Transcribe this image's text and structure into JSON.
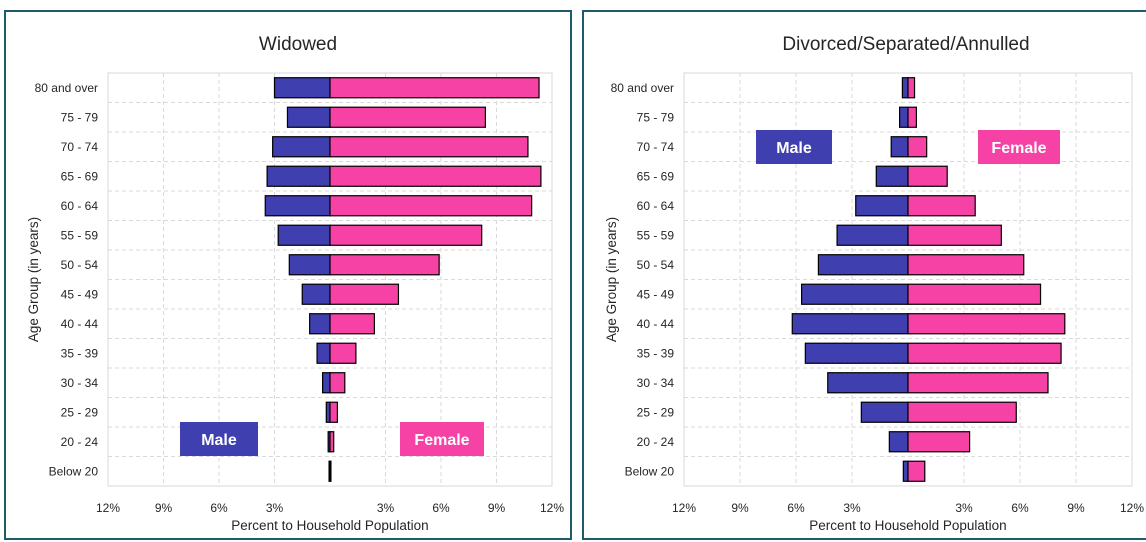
{
  "colors": {
    "male": "#3f3fb0",
    "female": "#f542a4",
    "border": "#1f5c6b",
    "grid": "#d9d9d9"
  },
  "chart_data": [
    {
      "type": "bar",
      "orientation": "horizontal-population-pyramid",
      "title": "Widowed",
      "xlabel": "Percent to Household Population",
      "ylabel": "Age Group (in years)",
      "xlim": [
        -12,
        12
      ],
      "xticks": [
        "12%",
        "9%",
        "6%",
        "3%",
        "3%",
        "6%",
        "9%",
        "12%"
      ],
      "grid": true,
      "categories": [
        "80 and over",
        "75 - 79",
        "70 - 74",
        "65 - 69",
        "60 - 64",
        "55 - 59",
        "50 - 54",
        "45 - 49",
        "40 - 44",
        "35 - 39",
        "30 - 34",
        "25 - 29",
        "20 - 24",
        "Below 20"
      ],
      "series": [
        {
          "name": "Male",
          "values": [
            3.0,
            2.3,
            3.1,
            3.4,
            3.5,
            2.8,
            2.2,
            1.5,
            1.1,
            0.7,
            0.4,
            0.2,
            0.1,
            0.05
          ]
        },
        {
          "name": "Female",
          "values": [
            11.3,
            8.4,
            10.7,
            11.4,
            10.9,
            8.2,
            5.9,
            3.7,
            2.4,
            1.4,
            0.8,
            0.4,
            0.2,
            0.05
          ]
        }
      ],
      "legend": {
        "male_label": "Male",
        "female_label": "Female",
        "placement": "bottom"
      }
    },
    {
      "type": "bar",
      "orientation": "horizontal-population-pyramid",
      "title": "Divorced/Separated/Annulled",
      "xlabel": "Percent to Household Population",
      "ylabel": "Age Group (in years)",
      "xlim": [
        -12,
        12
      ],
      "xticks": [
        "12%",
        "9%",
        "6%",
        "3%",
        "3%",
        "6%",
        "9%",
        "12%"
      ],
      "grid": true,
      "categories": [
        "80 and over",
        "75 - 79",
        "70 - 74",
        "65 - 69",
        "60 - 64",
        "55 - 59",
        "50 - 54",
        "45 - 49",
        "40 - 44",
        "35 - 39",
        "30 - 34",
        "25 - 29",
        "20 - 24",
        "Below 20"
      ],
      "series": [
        {
          "name": "Male",
          "values": [
            0.3,
            0.45,
            0.9,
            1.7,
            2.8,
            3.8,
            4.8,
            5.7,
            6.2,
            5.5,
            4.3,
            2.5,
            1.0,
            0.25
          ]
        },
        {
          "name": "Female",
          "values": [
            0.35,
            0.45,
            1.0,
            2.1,
            3.6,
            5.0,
            6.2,
            7.1,
            8.4,
            8.2,
            7.5,
            5.8,
            3.3,
            0.9
          ]
        }
      ],
      "legend": {
        "male_label": "Male",
        "female_label": "Female",
        "placement": "top"
      }
    }
  ]
}
